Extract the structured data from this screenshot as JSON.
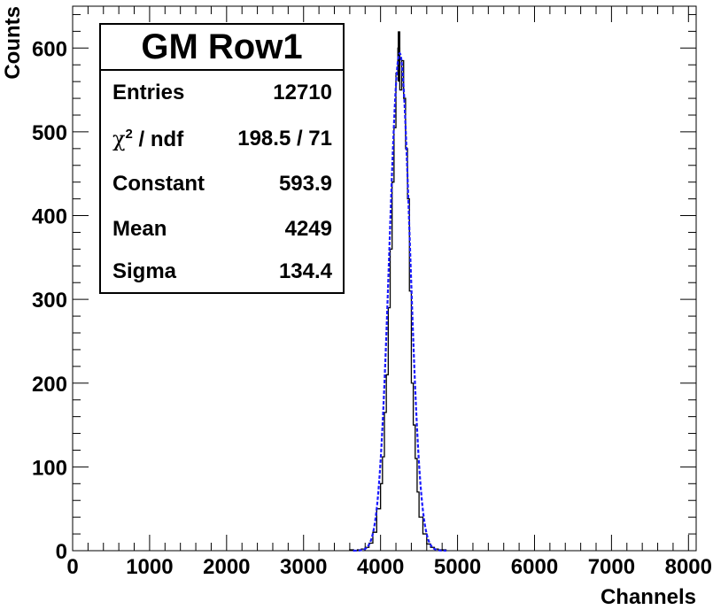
{
  "chart_data": {
    "type": "histogram",
    "title": "",
    "xlabel": "Channels",
    "ylabel": "Counts",
    "xlim": [
      0,
      8100
    ],
    "ylim": [
      0,
      650
    ],
    "x_ticks": [
      0,
      1000,
      2000,
      3000,
      4000,
      5000,
      6000,
      7000,
      8000
    ],
    "x_tick_labels": [
      "0",
      "1000",
      "2000",
      "3000",
      "4000",
      "5000",
      "6000",
      "7000",
      "8000"
    ],
    "y_ticks": [
      0,
      100,
      200,
      300,
      400,
      500,
      600
    ],
    "y_tick_labels": [
      "0",
      "100",
      "200",
      "300",
      "400",
      "500",
      "600"
    ],
    "grid": false,
    "histogram": {
      "color": "#000000",
      "bins": [
        {
          "x0": 3600,
          "x1": 3650,
          "y": 1
        },
        {
          "x0": 3650,
          "x1": 3700,
          "y": 0
        },
        {
          "x0": 3700,
          "x1": 3750,
          "y": 1
        },
        {
          "x0": 3750,
          "x1": 3800,
          "y": 2
        },
        {
          "x0": 3800,
          "x1": 3850,
          "y": 4
        },
        {
          "x0": 3850,
          "x1": 3900,
          "y": 9
        },
        {
          "x0": 3900,
          "x1": 3950,
          "y": 22
        },
        {
          "x0": 3950,
          "x1": 4000,
          "y": 50
        },
        {
          "x0": 4000,
          "x1": 4025,
          "y": 80
        },
        {
          "x0": 4025,
          "x1": 4050,
          "y": 112
        },
        {
          "x0": 4050,
          "x1": 4075,
          "y": 165
        },
        {
          "x0": 4075,
          "x1": 4100,
          "y": 210
        },
        {
          "x0": 4100,
          "x1": 4125,
          "y": 290
        },
        {
          "x0": 4125,
          "x1": 4150,
          "y": 360
        },
        {
          "x0": 4150,
          "x1": 4175,
          "y": 440
        },
        {
          "x0": 4175,
          "x1": 4200,
          "y": 505
        },
        {
          "x0": 4200,
          "x1": 4225,
          "y": 570
        },
        {
          "x0": 4225,
          "x1": 4250,
          "y": 600
        },
        {
          "x0": 4250,
          "x1": 4275,
          "y": 550
        },
        {
          "x0": 4275,
          "x1": 4300,
          "y": 585
        },
        {
          "x0": 4300,
          "x1": 4325,
          "y": 540
        },
        {
          "x0": 4325,
          "x1": 4350,
          "y": 480
        },
        {
          "x0": 4350,
          "x1": 4375,
          "y": 420
        },
        {
          "x0": 4375,
          "x1": 4400,
          "y": 310
        },
        {
          "x0": 4400,
          "x1": 4425,
          "y": 200
        },
        {
          "x0": 4425,
          "x1": 4450,
          "y": 150
        },
        {
          "x0": 4450,
          "x1": 4475,
          "y": 110
        },
        {
          "x0": 4475,
          "x1": 4500,
          "y": 70
        },
        {
          "x0": 4500,
          "x1": 4550,
          "y": 40
        },
        {
          "x0": 4550,
          "x1": 4600,
          "y": 20
        },
        {
          "x0": 4600,
          "x1": 4650,
          "y": 8
        },
        {
          "x0": 4650,
          "x1": 4700,
          "y": 4
        },
        {
          "x0": 4700,
          "x1": 4750,
          "y": 2
        },
        {
          "x0": 4750,
          "x1": 4800,
          "y": 1
        },
        {
          "x0": 4800,
          "x1": 4850,
          "y": 1
        }
      ],
      "peak_spike": {
        "x": 4240,
        "y": 620
      }
    },
    "fit": {
      "function": "gaus",
      "color": "#1a1aff",
      "style": "dashed",
      "constant": 593.9,
      "mean": 4249,
      "sigma": 134.4
    }
  },
  "stats": {
    "title": "GM Row1",
    "rows": [
      {
        "label": "Entries",
        "value": "12710"
      },
      {
        "label": "χ / ndf",
        "chi": true,
        "value": "198.5 / 71"
      },
      {
        "label": "Constant",
        "value": "593.9"
      },
      {
        "label": "Mean",
        "value": "4249"
      },
      {
        "label": "Sigma",
        "value": "134.4"
      }
    ]
  }
}
